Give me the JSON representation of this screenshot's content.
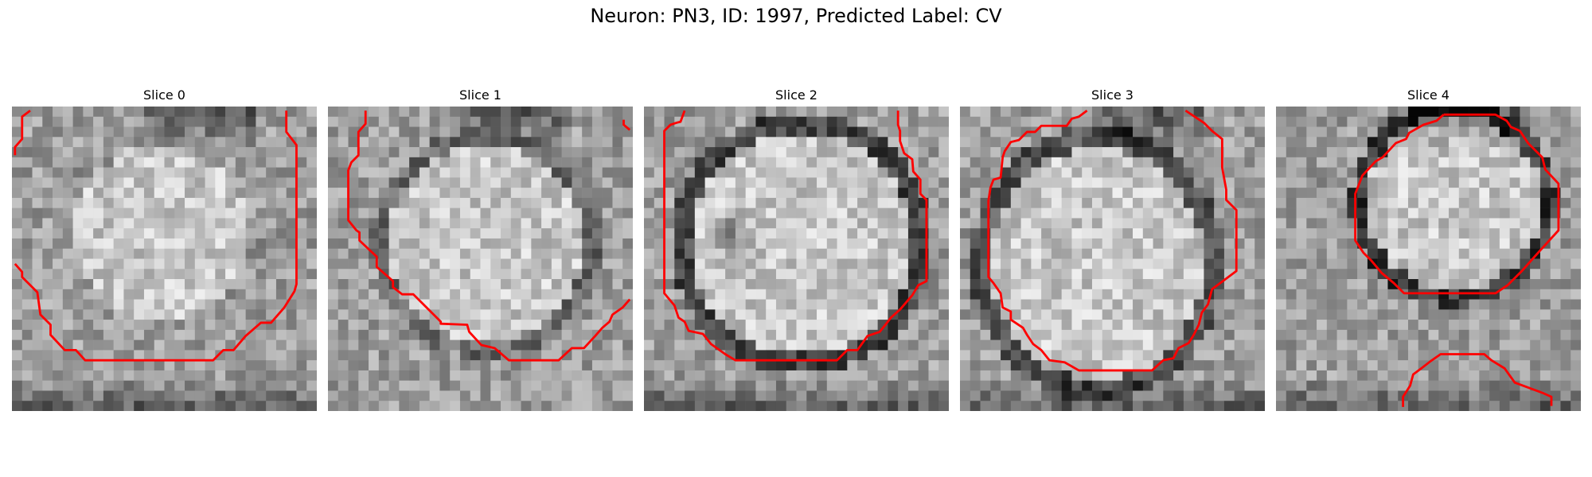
{
  "figure": {
    "title": "Neuron: PN3, ID: 1997, Predicted Label: CV"
  },
  "slices": [
    {
      "label": "Slice 0"
    },
    {
      "label": "Slice 1"
    },
    {
      "label": "Slice 2"
    },
    {
      "label": "Slice 3"
    },
    {
      "label": "Slice 4"
    }
  ],
  "colors": {
    "contour": "#ff0000",
    "background": "#ffffff"
  }
}
